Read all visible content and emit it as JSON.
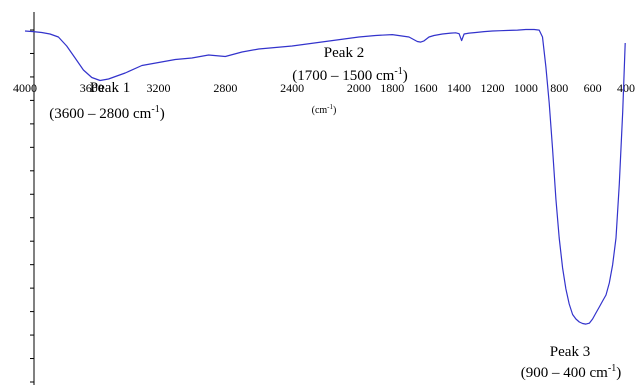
{
  "chart_data": {
    "type": "line",
    "title": "",
    "xlabel": "(cm-1)",
    "ylabel": "",
    "x_reversed": true,
    "xlim": [
      4000,
      400
    ],
    "ylim": [
      0,
      100
    ],
    "grid": false,
    "x_ticks": [
      4000,
      3600,
      3200,
      2800,
      2400,
      2000,
      1800,
      1600,
      1400,
      1200,
      1000,
      800,
      600,
      400
    ],
    "tick_labels": [
      "4000",
      "3600",
      "3200",
      "2800",
      "2400",
      "2000",
      "1800",
      "1600",
      "1400",
      "1200",
      "1000",
      "800",
      "600",
      "400"
    ],
    "y_tick_count": 16,
    "series": [
      {
        "color": "#3333cc",
        "x": [
          4000,
          3950,
          3900,
          3850,
          3800,
          3750,
          3700,
          3650,
          3600,
          3550,
          3500,
          3450,
          3400,
          3300,
          3200,
          3100,
          3000,
          2900,
          2800,
          2700,
          2600,
          2400,
          2200,
          2000,
          1900,
          1800,
          1700,
          1650,
          1630,
          1610,
          1580,
          1550,
          1500,
          1450,
          1420,
          1400,
          1385,
          1370,
          1340,
          1300,
          1250,
          1200,
          1150,
          1100,
          1050,
          1000,
          950,
          920,
          900,
          880,
          860,
          840,
          820,
          800,
          780,
          760,
          740,
          720,
          700,
          680,
          660,
          640,
          620,
          600,
          580,
          560,
          540,
          520,
          500,
          480,
          460,
          440,
          420,
          405
        ],
        "y": [
          99,
          98.8,
          98.5,
          98,
          97,
          94,
          90,
          86,
          83.5,
          82.5,
          83,
          84,
          85,
          87.5,
          88.5,
          89.5,
          90,
          91,
          90.5,
          92,
          93,
          94,
          95.5,
          97,
          97.5,
          97.8,
          97,
          95.5,
          95.3,
          95.7,
          97,
          97.5,
          98,
          98.3,
          98.4,
          98.1,
          95.8,
          98,
          98.3,
          98.5,
          98.8,
          99,
          99.1,
          99.2,
          99.3,
          99.5,
          99.5,
          99.3,
          97,
          87,
          75,
          60,
          43,
          30,
          20,
          13,
          8,
          4.5,
          3,
          2,
          1.5,
          1.3,
          1.6,
          3,
          5,
          7,
          9,
          11,
          15,
          21,
          30,
          48,
          72,
          95
        ]
      }
    ],
    "annotations": [
      {
        "text": "Peak 1",
        "range": "(3600 – 2800 cm",
        "sup": "-1",
        "close": ")"
      },
      {
        "text": "Peak 2",
        "range": "(1700 – 1500 cm",
        "sup": "-1",
        "close": ")"
      },
      {
        "text": "Peak 3",
        "range": "(900 – 400 cm",
        "sup": "-1",
        "close": ")"
      }
    ]
  }
}
